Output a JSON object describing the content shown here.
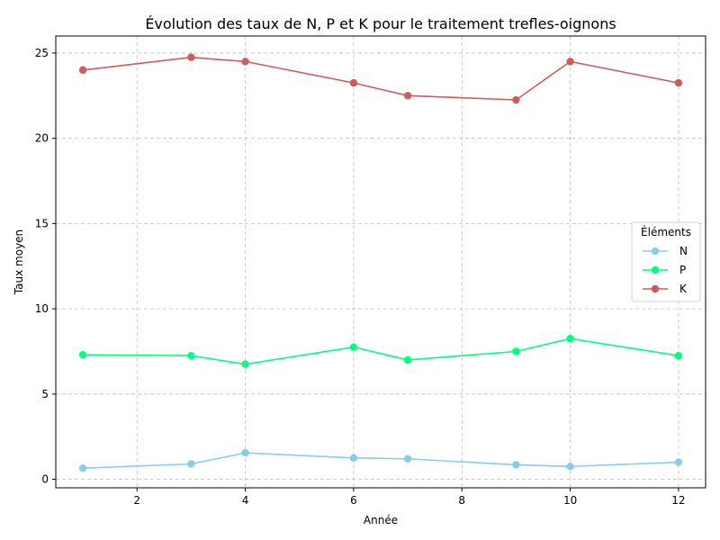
{
  "chart_data": {
    "type": "line",
    "title": "Évolution des taux de N, P et K pour le traitement trefles-oignons",
    "xlabel": "Année",
    "ylabel": "Taux moyen",
    "xlim": [
      0.5,
      12.5
    ],
    "ylim": [
      -0.5,
      26
    ],
    "xticks": [
      2,
      4,
      6,
      8,
      10,
      12
    ],
    "yticks": [
      0,
      5,
      10,
      15,
      20,
      25
    ],
    "grid": true,
    "legend": {
      "title": "Éléments",
      "position": "center-right"
    },
    "x": [
      1,
      3,
      4,
      6,
      7,
      9,
      10,
      12
    ],
    "series": [
      {
        "name": "N",
        "color": "#87ceeb",
        "values": [
          0.65,
          0.9,
          1.55,
          1.25,
          1.2,
          0.85,
          0.75,
          1.0
        ]
      },
      {
        "name": "P",
        "color": "#00ff7f",
        "values": [
          7.3,
          7.25,
          6.75,
          7.75,
          7.0,
          7.5,
          8.25,
          7.25
        ]
      },
      {
        "name": "K",
        "color": "#cd5c5c",
        "values": [
          24.0,
          24.75,
          24.5,
          23.25,
          22.5,
          22.25,
          24.5,
          23.25
        ]
      }
    ]
  }
}
